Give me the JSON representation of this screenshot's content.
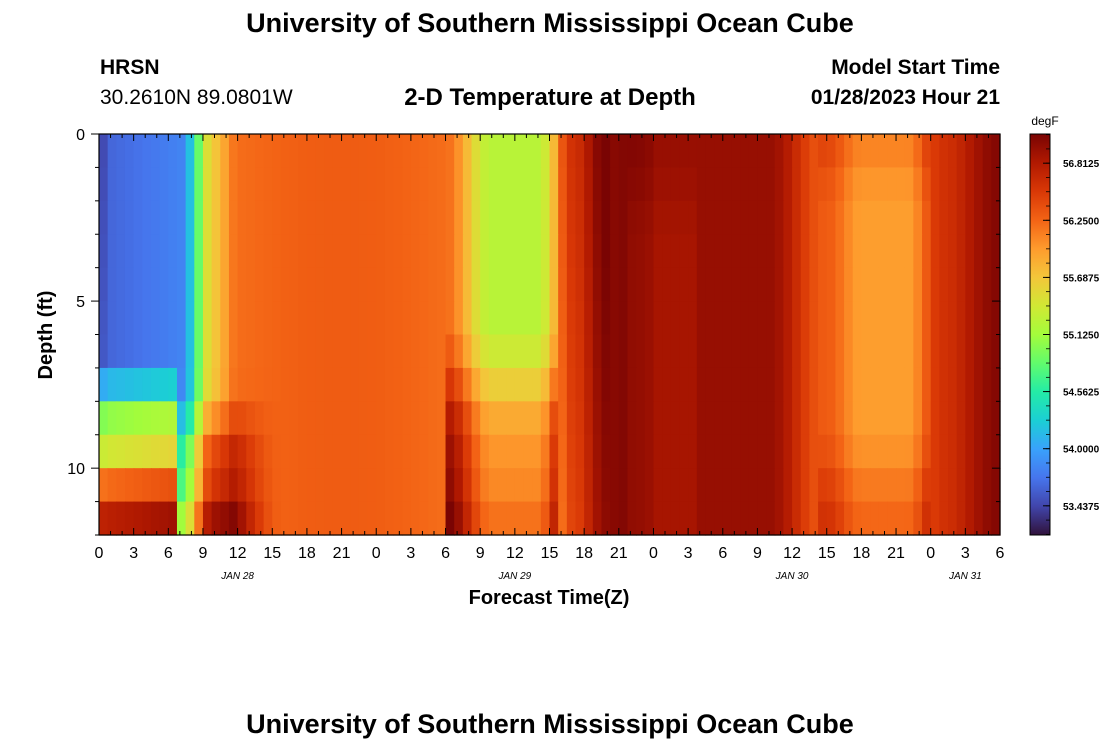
{
  "header": {
    "title": "University of Southern Mississippi Ocean Cube",
    "station": "HRSN",
    "coords": "30.2610N  89.0801W",
    "subtitle": "2-D Temperature at Depth",
    "model_start_label": "Model Start Time",
    "model_start_value": "01/28/2023 Hour 21"
  },
  "footer": {
    "title": "University of Southern Mississippi Ocean Cube"
  },
  "chart_data": {
    "type": "heatmap",
    "title": "2-D Temperature at Depth",
    "xlabel": "Forecast Time(Z)",
    "ylabel": "Depth (ft)",
    "x_hours_range": [
      0,
      78
    ],
    "y_depth_range_ft": [
      0,
      12
    ],
    "x_tick_labels": [
      "0",
      "3",
      "6",
      "9",
      "12",
      "15",
      "18",
      "21",
      "0",
      "3",
      "6",
      "9",
      "12",
      "15",
      "18",
      "21",
      "0",
      "3",
      "6",
      "9",
      "12",
      "15",
      "18",
      "21",
      "0",
      "3",
      "6"
    ],
    "y_tick_labels": [
      "0",
      "5",
      "10"
    ],
    "y_tick_values": [
      0,
      5,
      10
    ],
    "date_labels": [
      {
        "label": "JAN 28",
        "hour": 12
      },
      {
        "label": "JAN 29",
        "hour": 36
      },
      {
        "label": "JAN 30",
        "hour": 60
      },
      {
        "label": "JAN 31",
        "hour": 75
      }
    ],
    "colorbar": {
      "units": "degF",
      "min": 53.15,
      "max": 57.1,
      "tick_labels": [
        "56.8125",
        "56.2500",
        "55.6875",
        "55.1250",
        "54.5625",
        "54.0000",
        "53.4375"
      ],
      "tick_values": [
        56.8125,
        56.25,
        55.6875,
        55.125,
        54.5625,
        54.0,
        53.4375
      ]
    },
    "palette": [
      "#30123b",
      "#4145ab",
      "#4675ed",
      "#39a2fc",
      "#1bcfd4",
      "#24eca6",
      "#61fc6c",
      "#a4fc3b",
      "#d1e834",
      "#f3c63a",
      "#fe9b2d",
      "#f36315",
      "#d93806",
      "#b11901",
      "#7a0403"
    ]
  }
}
